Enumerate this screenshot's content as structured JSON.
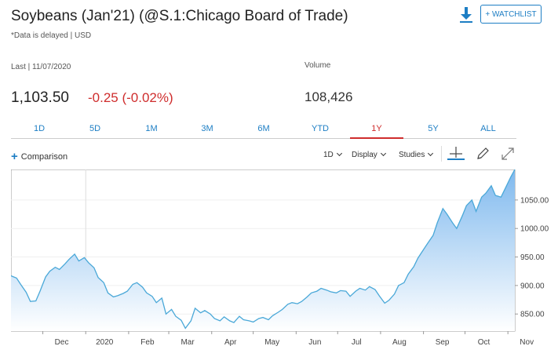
{
  "header": {
    "title": "Soybeans (Jan'21) (@S.1:Chicago Board of Trade)",
    "subnote": "*Data is delayed | USD",
    "download_icon": "download-icon",
    "watchlist_label": "+ WATCHLIST"
  },
  "quote": {
    "last_label": "Last | 11/07/2020",
    "last_price": "1,103.50",
    "change": "-0.25 (-0.02%)",
    "volume_label": "Volume",
    "volume": "108,426"
  },
  "colors": {
    "accent": "#1d7ec4",
    "negative": "#cf2d2d",
    "line": "#4aa8d8",
    "fill_top": "#7fb9ee",
    "fill_bottom": "#ffffff"
  },
  "ranges": [
    {
      "label": "1D",
      "active": false
    },
    {
      "label": "5D",
      "active": false
    },
    {
      "label": "1M",
      "active": false
    },
    {
      "label": "3M",
      "active": false
    },
    {
      "label": "6M",
      "active": false
    },
    {
      "label": "YTD",
      "active": false
    },
    {
      "label": "1Y",
      "active": true
    },
    {
      "label": "5Y",
      "active": false
    },
    {
      "label": "ALL",
      "active": false
    }
  ],
  "toolbar": {
    "comparison": "Comparison",
    "interval": "1D",
    "display": "Display",
    "studies": "Studies",
    "crosshair_icon": "crosshair-icon",
    "draw_icon": "pencil-icon",
    "expand_icon": "expand-icon"
  },
  "chart_data": {
    "type": "area",
    "x_ticks": [
      "Dec",
      "2020",
      "Feb",
      "Mar",
      "Apr",
      "May",
      "Jun",
      "Jul",
      "Aug",
      "Sep",
      "Oct",
      "Nov"
    ],
    "y_ticks": [
      850,
      900,
      950,
      1000,
      1050
    ],
    "y_tick_labels": [
      "850.00",
      "900.00",
      "950.00",
      "1000.00",
      "1050.00"
    ],
    "ylim": [
      820,
      1103.5
    ],
    "grid": true,
    "series": [
      {
        "x": [
          "2019-11-08",
          "2019-11-12",
          "2019-11-15",
          "2019-11-19",
          "2019-11-22",
          "2019-11-26",
          "2019-11-29",
          "2019-12-03",
          "2019-12-06",
          "2019-12-10",
          "2019-12-13",
          "2019-12-17",
          "2019-12-20",
          "2019-12-24",
          "2019-12-27",
          "2019-12-31",
          "2020-01-03",
          "2020-01-07",
          "2020-01-10",
          "2020-01-14",
          "2020-01-17",
          "2020-01-21",
          "2020-01-24",
          "2020-01-28",
          "2020-01-31",
          "2020-02-04",
          "2020-02-07",
          "2020-02-11",
          "2020-02-14",
          "2020-02-18",
          "2020-02-21",
          "2020-02-25",
          "2020-02-28",
          "2020-03-03",
          "2020-03-06",
          "2020-03-10",
          "2020-03-13",
          "2020-03-17",
          "2020-03-20",
          "2020-03-24",
          "2020-03-27",
          "2020-03-31",
          "2020-04-03",
          "2020-04-07",
          "2020-04-10",
          "2020-04-14",
          "2020-04-17",
          "2020-04-21",
          "2020-04-24",
          "2020-04-28",
          "2020-05-01",
          "2020-05-05",
          "2020-05-08",
          "2020-05-12",
          "2020-05-15",
          "2020-05-19",
          "2020-05-22",
          "2020-05-26",
          "2020-05-29",
          "2020-06-02",
          "2020-06-05",
          "2020-06-09",
          "2020-06-12",
          "2020-06-16",
          "2020-06-19",
          "2020-06-23",
          "2020-06-26",
          "2020-06-30",
          "2020-07-03",
          "2020-07-07",
          "2020-07-10",
          "2020-07-14",
          "2020-07-17",
          "2020-07-21",
          "2020-07-24",
          "2020-07-28",
          "2020-07-31",
          "2020-08-04",
          "2020-08-07",
          "2020-08-11",
          "2020-08-14",
          "2020-08-18",
          "2020-08-21",
          "2020-08-25",
          "2020-08-28",
          "2020-09-01",
          "2020-09-04",
          "2020-09-08",
          "2020-09-11",
          "2020-09-15",
          "2020-09-18",
          "2020-09-22",
          "2020-09-25",
          "2020-09-29",
          "2020-10-02",
          "2020-10-06",
          "2020-10-09",
          "2020-10-13",
          "2020-10-16",
          "2020-10-20",
          "2020-10-23",
          "2020-10-27",
          "2020-10-30",
          "2020-11-03",
          "2020-11-06"
        ],
        "values": [
          917,
          913,
          902,
          888,
          872,
          873,
          890,
          915,
          925,
          932,
          928,
          938,
          946,
          955,
          943,
          949,
          940,
          931,
          914,
          905,
          887,
          880,
          882,
          886,
          890,
          902,
          905,
          897,
          887,
          881,
          870,
          878,
          850,
          858,
          846,
          839,
          825,
          838,
          860,
          852,
          856,
          850,
          842,
          838,
          845,
          838,
          835,
          846,
          840,
          838,
          836,
          842,
          844,
          840,
          847,
          853,
          858,
          867,
          870,
          868,
          872,
          880,
          887,
          890,
          895,
          892,
          889,
          887,
          891,
          890,
          881,
          890,
          895,
          892,
          898,
          893,
          882,
          869,
          874,
          885,
          900,
          905,
          920,
          933,
          948,
          963,
          974,
          988,
          1010,
          1035,
          1025,
          1010,
          1000,
          1022,
          1040,
          1050,
          1030,
          1055,
          1062,
          1075,
          1058,
          1055,
          1070,
          1090,
          1103.5
        ]
      }
    ]
  }
}
